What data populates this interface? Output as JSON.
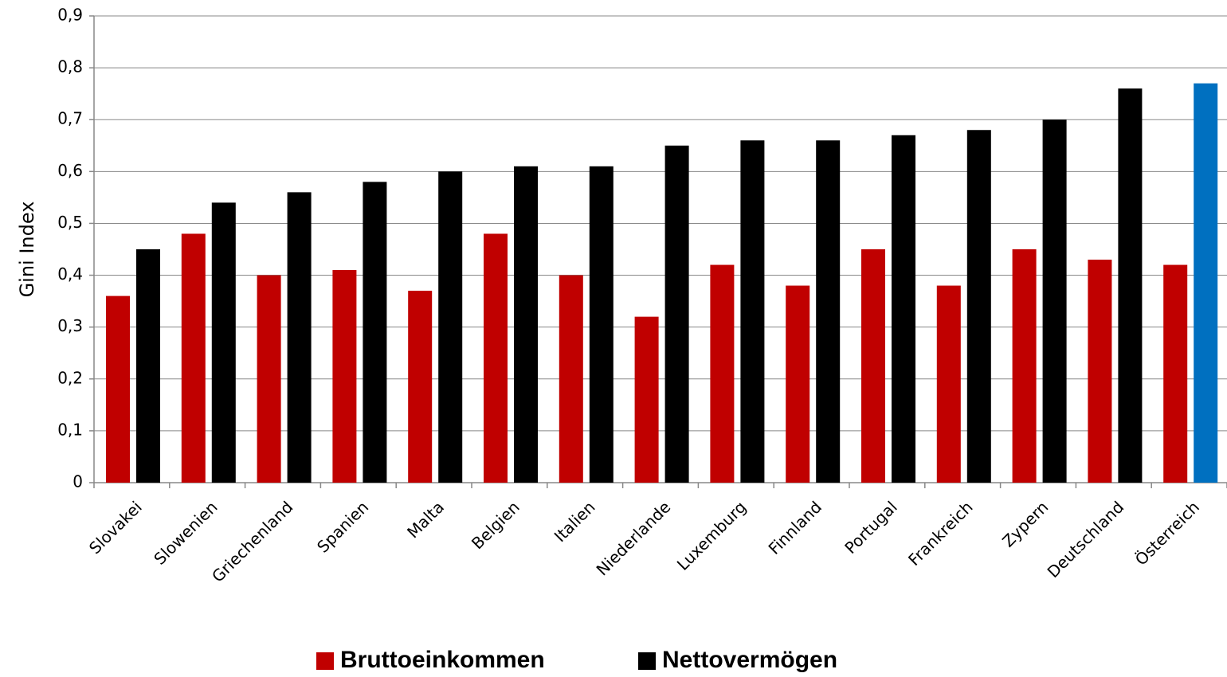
{
  "chart_data": {
    "type": "bar",
    "y_label": "Gini Index",
    "categories": [
      "Slovakei",
      "Slowenien",
      "Griechenland",
      "Spanien",
      "Malta",
      "Belgien",
      "Italien",
      "Niederlande",
      "Luxemburg",
      "Finnland",
      "Portugal",
      "Frankreich",
      "Zypern",
      "Deutschland",
      "Österreich"
    ],
    "series": [
      {
        "name": "Bruttoeinkommen",
        "color": "#c00000",
        "values": [
          0.36,
          0.48,
          0.4,
          0.41,
          0.37,
          0.48,
          0.4,
          0.32,
          0.42,
          0.38,
          0.45,
          0.38,
          0.45,
          0.43,
          0.42
        ]
      },
      {
        "name": "Nettovermögen",
        "color": "#000000",
        "colors": [
          "#000000",
          "#000000",
          "#000000",
          "#000000",
          "#000000",
          "#000000",
          "#000000",
          "#000000",
          "#000000",
          "#000000",
          "#000000",
          "#000000",
          "#000000",
          "#000000",
          "#0070c0"
        ],
        "values": [
          0.45,
          0.54,
          0.56,
          0.58,
          0.6,
          0.61,
          0.61,
          0.65,
          0.66,
          0.66,
          0.67,
          0.68,
          0.7,
          0.76,
          0.77
        ]
      }
    ],
    "ylim": [
      0,
      0.9
    ],
    "yticks": [
      0,
      {
        "value": 0.1,
        "label": "0,1"
      },
      {
        "value": 0.2,
        "label": "0,2"
      },
      {
        "value": 0.3,
        "label": "0,3"
      },
      {
        "value": 0.4,
        "label": "0,4"
      },
      {
        "value": 0.5,
        "label": "0,5"
      },
      {
        "value": 0.6,
        "label": "0,6"
      },
      {
        "value": 0.7,
        "label": "0,7"
      },
      {
        "value": 0.8,
        "label": "0,8"
      },
      {
        "value": 0.9,
        "label": "0,9"
      }
    ],
    "grid": true,
    "legend": "bottom"
  }
}
